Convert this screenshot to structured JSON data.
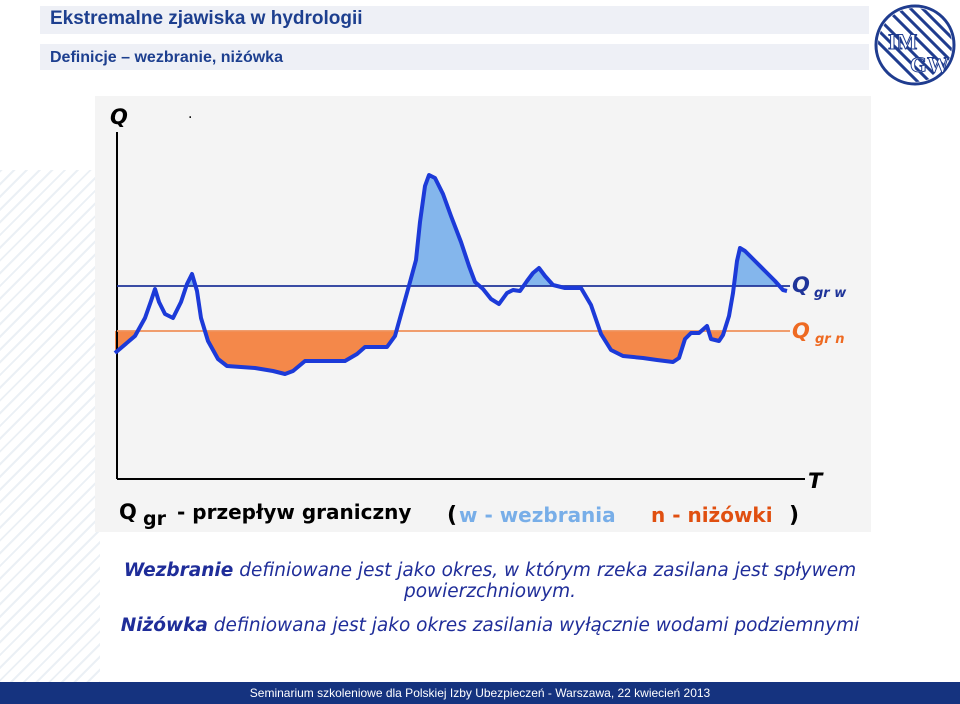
{
  "header": {
    "title": "Ekstremalne zjawiska w hydrologii",
    "subtitle": "Definicje – wezbranie, niżówka"
  },
  "logo": {
    "text_top": "IM",
    "text_bottom": "GW",
    "color": "#1f3c8f"
  },
  "diagram": {
    "axis_y_label": "Q",
    "axis_x_label": "T",
    "dot": ".",
    "label_qw_main": "Q",
    "label_qw_sub": "gr w",
    "label_qn_main": "Q",
    "label_qn_sub": "gr n",
    "legend_q": "Q",
    "legend_gr": "gr",
    "legend_def": "- przepływ graniczny",
    "legend_open": "(",
    "legend_w": "w - wezbrania",
    "legend_n": "n - niżówki",
    "legend_close": ")",
    "colors": {
      "flow_line": "#1c3ad8",
      "threshold_w": "#1f3499",
      "threshold_n": "#f0915a",
      "flood_fill": "#84b6ec",
      "drought_fill": "#f4884a"
    }
  },
  "text": {
    "wezbranie_term": "Wezbranie",
    "wezbranie_def": " definiowane jest jako okres, w którym rzeka zasilana jest spływem powierzchniowym.",
    "nizowka_term": "Niżówka",
    "nizowka_def": " definiowana jest jako okres zasilania wyłącznie wodami podziemnymi"
  },
  "footer": {
    "text": "Seminarium szkoleniowe dla Polskiej Izby Ubezpieczeń - Warszawa, 22 kwiecień 2013"
  }
}
